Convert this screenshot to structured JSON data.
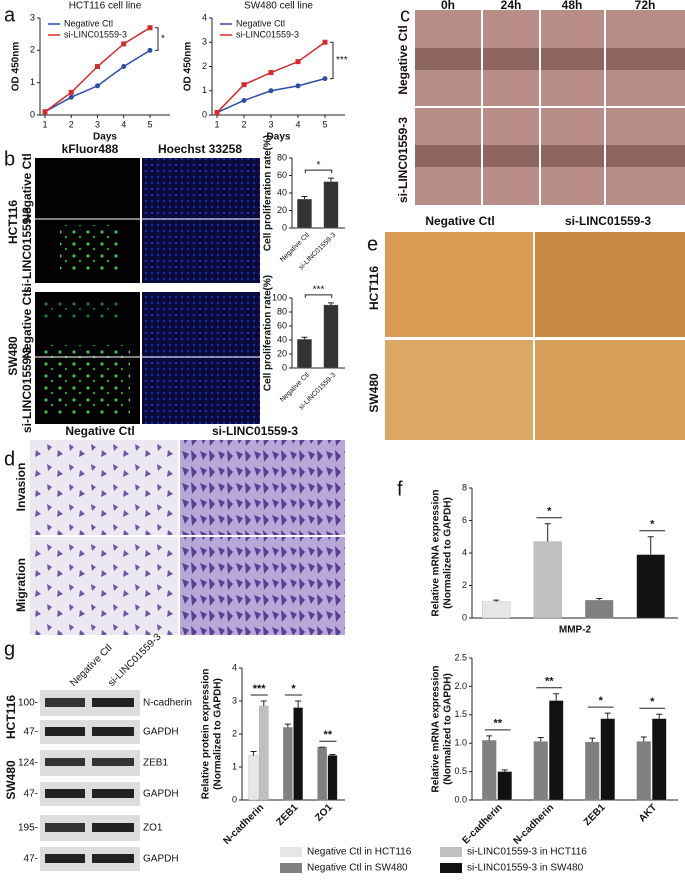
{
  "labels": {
    "panels": [
      "a",
      "b",
      "c",
      "d",
      "e",
      "f",
      "g"
    ],
    "c_times": [
      "0h",
      "24h",
      "48h",
      "72h"
    ],
    "groups": [
      "Negative Ctl",
      "si-LINC01559-3"
    ],
    "b_stains": [
      "kFluor488",
      "Hoechst 33258"
    ],
    "cells": [
      "HCT116",
      "SW480"
    ],
    "d_rows": [
      "Invasion",
      "Migration"
    ],
    "blot_markers": [
      "100-",
      "47-",
      "124-",
      "47-",
      "195-",
      "47-"
    ],
    "blot_proteins": [
      "N-cadherin",
      "GAPDH",
      "ZEB1",
      "GAPDH",
      "ZO1",
      "GAPDH"
    ]
  },
  "legend": [
    {
      "name": "Negative Ctl in HCT116",
      "color": "#e6e6e6"
    },
    {
      "name": "si-LINC01559-3 in HCT116",
      "color": "#c0c0c0"
    },
    {
      "name": "Negative Ctl in SW480",
      "color": "#808080"
    },
    {
      "name": "si-LINC01559-3 in SW480",
      "color": "#111111"
    }
  ],
  "chart_data": [
    {
      "type": "line",
      "title": "HCT116 cell line",
      "xlabel": "Days",
      "ylabel": [
        "OD 450nm"
      ],
      "x": [
        1,
        2,
        3,
        4,
        5
      ],
      "xlim": [
        1,
        5
      ],
      "xticks": [
        1,
        2,
        3,
        4,
        5
      ],
      "ylim": [
        0,
        3
      ],
      "yticks": [
        0,
        1,
        2,
        3
      ],
      "annotation": "*",
      "series": [
        {
          "name": "Negative Ctl",
          "color": "#2b4da8",
          "values": [
            0.1,
            0.55,
            0.9,
            1.5,
            2.0
          ]
        },
        {
          "name": "si-LINC01559-3",
          "color": "#d62b2b",
          "values": [
            0.1,
            0.7,
            1.5,
            2.2,
            2.7
          ]
        }
      ]
    },
    {
      "type": "line",
      "title": "SW480 cell line",
      "xlabel": "Days",
      "ylabel": [
        "OD 450nm"
      ],
      "x": [
        1,
        2,
        3,
        4,
        5
      ],
      "xlim": [
        1,
        5
      ],
      "xticks": [
        1,
        2,
        3,
        4,
        5
      ],
      "ylim": [
        0,
        4
      ],
      "yticks": [
        0,
        1,
        2,
        3,
        4
      ],
      "annotation": "***",
      "series": [
        {
          "name": "Negative Ctl",
          "color": "#2b4da8",
          "values": [
            0.1,
            0.6,
            1.0,
            1.2,
            1.5
          ]
        },
        {
          "name": "si-LINC01559-3",
          "color": "#d62b2b",
          "values": [
            0.1,
            1.25,
            1.75,
            2.2,
            3.0
          ]
        }
      ]
    },
    {
      "type": "bar",
      "ylabel": [
        "Cell proliferation rate(%)"
      ],
      "categories": [
        "Negative Ctl",
        "si-LINC01559-3"
      ],
      "ylim": [
        0,
        80
      ],
      "yticks": [
        0,
        20,
        40,
        60,
        80
      ],
      "annotation": "*",
      "series": [
        {
          "values": [
            33,
            53
          ],
          "errors": [
            3,
            4
          ],
          "colors": [
            "#333333",
            "#333333"
          ]
        }
      ]
    },
    {
      "type": "bar",
      "ylabel": [
        "Cell proliferation rate(%)"
      ],
      "categories": [
        "Negative Ctl",
        "si-LINC01559-3"
      ],
      "ylim": [
        0,
        100
      ],
      "yticks": [
        0,
        20,
        40,
        60,
        80,
        100
      ],
      "annotation": "***",
      "series": [
        {
          "values": [
            41,
            90
          ],
          "errors": [
            3,
            3
          ],
          "colors": [
            "#333333",
            "#333333"
          ]
        }
      ]
    },
    {
      "type": "bar",
      "xlabel": "MMP-2",
      "ylabel": [
        "Relative mRNA expression",
        "(Normalized to GAPDH)"
      ],
      "categories": [
        null,
        null,
        null,
        null
      ],
      "ylim": [
        0,
        8
      ],
      "yticks": [
        0,
        2,
        4,
        6,
        8
      ],
      "annotations": [
        null,
        "*",
        null,
        "*"
      ],
      "series": [
        {
          "values": [
            1.0,
            4.7,
            1.1,
            3.9
          ],
          "errors": [
            0.1,
            1.1,
            0.1,
            1.1
          ],
          "colors": [
            "#e6e6e6",
            "#c0c0c0",
            "#808080",
            "#111111"
          ]
        }
      ]
    },
    {
      "type": "bar",
      "ylabel": [
        "Relative protein expression",
        "(Normalized to GAPDH)"
      ],
      "categories": [
        "N-cadherin",
        "ZEB1",
        "ZO1"
      ],
      "ylim": [
        0,
        4
      ],
      "yticks": [
        0,
        1,
        2,
        3,
        4
      ],
      "annotations": [
        "***",
        "*",
        "**"
      ],
      "series": [
        {
          "values": [
            1.35,
            2.2,
            1.6
          ],
          "errors": [
            0.12,
            0.1,
            0
          ],
          "colors": [
            "#e6e6e6",
            "#808080",
            "#808080"
          ]
        },
        {
          "values": [
            2.85,
            2.8,
            1.35
          ],
          "errors": [
            0.15,
            0.2,
            0.03
          ],
          "colors": [
            "#c0c0c0",
            "#111111",
            "#111111"
          ]
        }
      ]
    },
    {
      "type": "bar",
      "ylabel": [
        "Relative mRNA expression",
        "(Normalized to GAPDH)"
      ],
      "categories": [
        "E-cadherin",
        "N-cadherin",
        "ZEB1",
        "AKT"
      ],
      "ylim": [
        0,
        2.5
      ],
      "yticks": [
        {
          "value": 0,
          "label": "0.0"
        },
        0.5,
        {
          "value": 1,
          "label": "1.0"
        },
        1.5,
        {
          "value": 2,
          "label": "2.0"
        },
        2.5
      ],
      "annotations": [
        "**",
        "**",
        "*",
        "*"
      ],
      "series": [
        {
          "values": [
            1.05,
            1.03,
            1.02,
            1.03
          ],
          "errors": [
            0.08,
            0.07,
            0.07,
            0.08
          ],
          "colors": [
            "#808080",
            "#808080",
            "#808080",
            "#808080"
          ]
        },
        {
          "values": [
            0.5,
            1.75,
            1.43,
            1.43
          ],
          "errors": [
            0.03,
            0.12,
            0.1,
            0.08
          ],
          "colors": [
            "#111111",
            "#111111",
            "#111111",
            "#111111"
          ]
        }
      ]
    }
  ]
}
